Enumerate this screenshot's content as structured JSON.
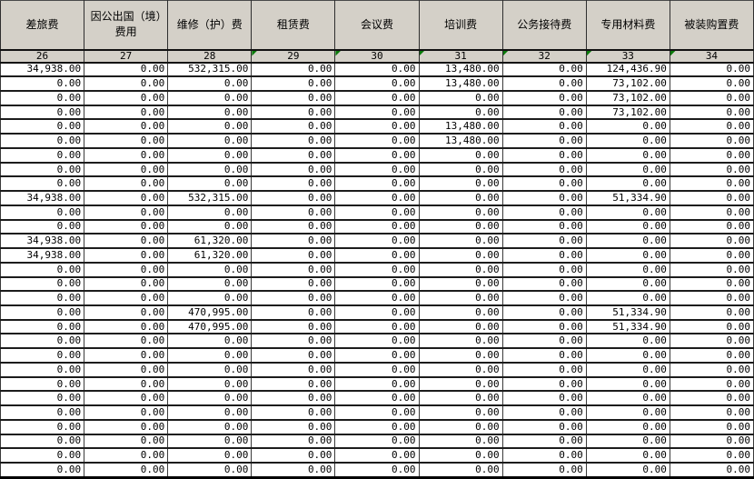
{
  "table": {
    "columns": [
      {
        "label": "差旅费",
        "number": "26",
        "error_flag": false
      },
      {
        "label": "因公出国（境）费用",
        "number": "27",
        "error_flag": false
      },
      {
        "label": "维修（护）费",
        "number": "28",
        "error_flag": false
      },
      {
        "label": "租赁费",
        "number": "29",
        "error_flag": true
      },
      {
        "label": "会议费",
        "number": "30",
        "error_flag": true
      },
      {
        "label": "培训费",
        "number": "31",
        "error_flag": true
      },
      {
        "label": "公务接待费",
        "number": "32",
        "error_flag": true
      },
      {
        "label": "专用材料费",
        "number": "33",
        "error_flag": true
      },
      {
        "label": "被装购置费",
        "number": "34",
        "error_flag": true
      }
    ],
    "rows": [
      [
        "34,938.00",
        "0.00",
        "532,315.00",
        "0.00",
        "0.00",
        "13,480.00",
        "0.00",
        "124,436.90",
        "0.00"
      ],
      [
        "0.00",
        "0.00",
        "0.00",
        "0.00",
        "0.00",
        "13,480.00",
        "0.00",
        "73,102.00",
        "0.00"
      ],
      [
        "0.00",
        "0.00",
        "0.00",
        "0.00",
        "0.00",
        "0.00",
        "0.00",
        "73,102.00",
        "0.00"
      ],
      [
        "0.00",
        "0.00",
        "0.00",
        "0.00",
        "0.00",
        "0.00",
        "0.00",
        "73,102.00",
        "0.00"
      ],
      [
        "0.00",
        "0.00",
        "0.00",
        "0.00",
        "0.00",
        "13,480.00",
        "0.00",
        "0.00",
        "0.00"
      ],
      [
        "0.00",
        "0.00",
        "0.00",
        "0.00",
        "0.00",
        "13,480.00",
        "0.00",
        "0.00",
        "0.00"
      ],
      [
        "0.00",
        "0.00",
        "0.00",
        "0.00",
        "0.00",
        "0.00",
        "0.00",
        "0.00",
        "0.00"
      ],
      [
        "0.00",
        "0.00",
        "0.00",
        "0.00",
        "0.00",
        "0.00",
        "0.00",
        "0.00",
        "0.00"
      ],
      [
        "0.00",
        "0.00",
        "0.00",
        "0.00",
        "0.00",
        "0.00",
        "0.00",
        "0.00",
        "0.00"
      ],
      [
        "34,938.00",
        "0.00",
        "532,315.00",
        "0.00",
        "0.00",
        "0.00",
        "0.00",
        "51,334.90",
        "0.00"
      ],
      [
        "0.00",
        "0.00",
        "0.00",
        "0.00",
        "0.00",
        "0.00",
        "0.00",
        "0.00",
        "0.00"
      ],
      [
        "0.00",
        "0.00",
        "0.00",
        "0.00",
        "0.00",
        "0.00",
        "0.00",
        "0.00",
        "0.00"
      ],
      [
        "34,938.00",
        "0.00",
        "61,320.00",
        "0.00",
        "0.00",
        "0.00",
        "0.00",
        "0.00",
        "0.00"
      ],
      [
        "34,938.00",
        "0.00",
        "61,320.00",
        "0.00",
        "0.00",
        "0.00",
        "0.00",
        "0.00",
        "0.00"
      ],
      [
        "0.00",
        "0.00",
        "0.00",
        "0.00",
        "0.00",
        "0.00",
        "0.00",
        "0.00",
        "0.00"
      ],
      [
        "0.00",
        "0.00",
        "0.00",
        "0.00",
        "0.00",
        "0.00",
        "0.00",
        "0.00",
        "0.00"
      ],
      [
        "0.00",
        "0.00",
        "0.00",
        "0.00",
        "0.00",
        "0.00",
        "0.00",
        "0.00",
        "0.00"
      ],
      [
        "0.00",
        "0.00",
        "470,995.00",
        "0.00",
        "0.00",
        "0.00",
        "0.00",
        "51,334.90",
        "0.00"
      ],
      [
        "0.00",
        "0.00",
        "470,995.00",
        "0.00",
        "0.00",
        "0.00",
        "0.00",
        "51,334.90",
        "0.00"
      ],
      [
        "0.00",
        "0.00",
        "0.00",
        "0.00",
        "0.00",
        "0.00",
        "0.00",
        "0.00",
        "0.00"
      ],
      [
        "0.00",
        "0.00",
        "0.00",
        "0.00",
        "0.00",
        "0.00",
        "0.00",
        "0.00",
        "0.00"
      ],
      [
        "0.00",
        "0.00",
        "0.00",
        "0.00",
        "0.00",
        "0.00",
        "0.00",
        "0.00",
        "0.00"
      ],
      [
        "0.00",
        "0.00",
        "0.00",
        "0.00",
        "0.00",
        "0.00",
        "0.00",
        "0.00",
        "0.00"
      ],
      [
        "0.00",
        "0.00",
        "0.00",
        "0.00",
        "0.00",
        "0.00",
        "0.00",
        "0.00",
        "0.00"
      ],
      [
        "0.00",
        "0.00",
        "0.00",
        "0.00",
        "0.00",
        "0.00",
        "0.00",
        "0.00",
        "0.00"
      ],
      [
        "0.00",
        "0.00",
        "0.00",
        "0.00",
        "0.00",
        "0.00",
        "0.00",
        "0.00",
        "0.00"
      ],
      [
        "0.00",
        "0.00",
        "0.00",
        "0.00",
        "0.00",
        "0.00",
        "0.00",
        "0.00",
        "0.00"
      ],
      [
        "0.00",
        "0.00",
        "0.00",
        "0.00",
        "0.00",
        "0.00",
        "0.00",
        "0.00",
        "0.00"
      ],
      [
        "0.00",
        "0.00",
        "0.00",
        "0.00",
        "0.00",
        "0.00",
        "0.00",
        "0.00",
        "0.00"
      ]
    ]
  },
  "colors": {
    "header_bg": "#d4d0c8",
    "cell_bg": "#ffffff",
    "grid_border": "#1c1c1c",
    "error_triangle": "#0a7a0a"
  }
}
